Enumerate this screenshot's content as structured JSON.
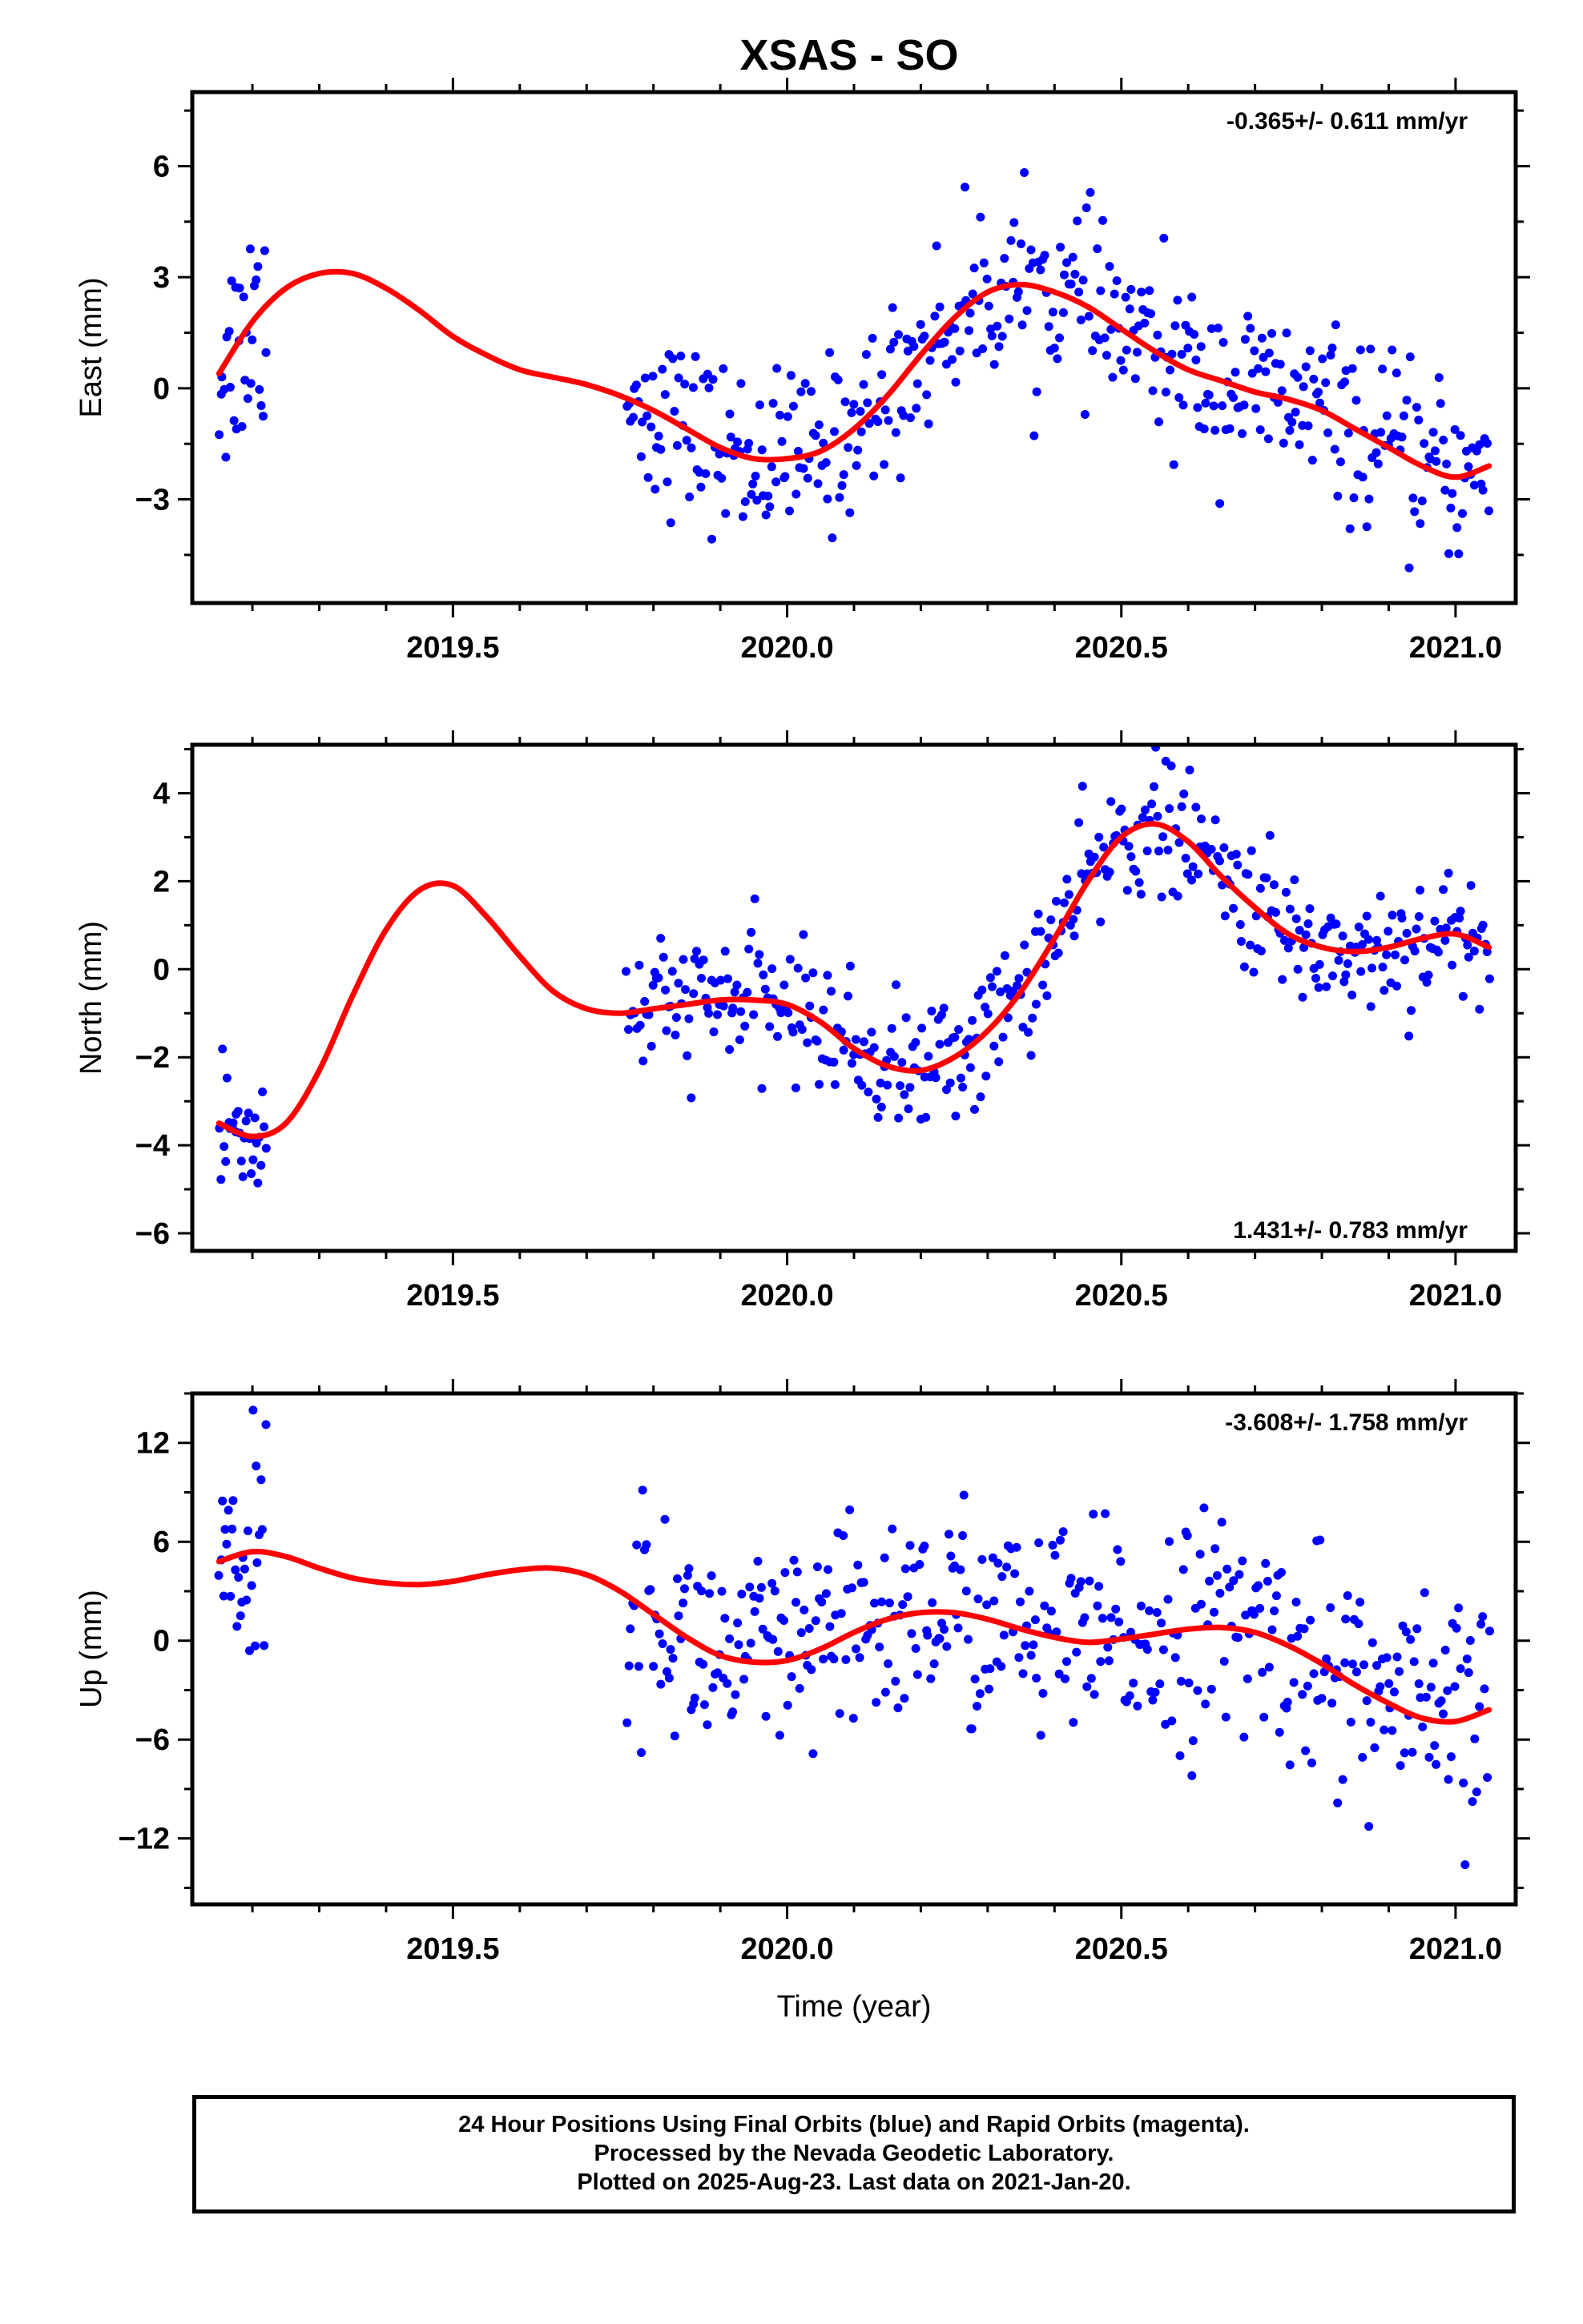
{
  "title": "XSAS - SO",
  "xlabel": "Time (year)",
  "footer": {
    "line1": "24 Hour Positions Using Final Orbits (blue) and Rapid Orbits (magenta).",
    "line2": "Processed by the Nevada Geodetic Laboratory.",
    "line3": "Plotted on 2025-Aug-23. Last data on 2021-Jan-20."
  },
  "colors": {
    "points": "#0000ff",
    "fit": "#ff0000",
    "axes": "#000000"
  },
  "chart_data": [
    {
      "type": "scatter",
      "panel": "east",
      "ylabel": "East (mm)",
      "rate_label": "-0.365+/- 0.611 mm/yr",
      "xlim": [
        2019.11,
        2021.09
      ],
      "ylim": [
        -5.8,
        8.0
      ],
      "x_ticks": [
        2019.5,
        2020.0,
        2020.5,
        2021.0
      ],
      "x_tick_labels": [
        "2019.5",
        "2020.0",
        "2020.5",
        "2021.0"
      ],
      "y_ticks": [
        -3,
        0,
        3,
        6
      ],
      "y_tick_labels": [
        "−3",
        "0",
        "3",
        "6"
      ],
      "fit_x": [
        2019.15,
        2019.2,
        2019.25,
        2019.3,
        2019.35,
        2019.4,
        2019.45,
        2019.5,
        2019.55,
        2019.6,
        2019.65,
        2019.7,
        2019.75,
        2019.8,
        2019.85,
        2019.9,
        2019.95,
        2020.0,
        2020.05,
        2020.1,
        2020.15,
        2020.2,
        2020.25,
        2020.3,
        2020.35,
        2020.4,
        2020.45,
        2020.5,
        2020.55,
        2020.6,
        2020.65,
        2020.7,
        2020.75,
        2020.8,
        2020.85,
        2020.9,
        2020.95,
        2021.0,
        2021.05
      ],
      "fit_y": [
        0.4,
        1.8,
        2.7,
        3.1,
        3.1,
        2.7,
        2.1,
        1.4,
        0.9,
        0.5,
        0.3,
        0.1,
        -0.2,
        -0.6,
        -1.1,
        -1.6,
        -1.9,
        -1.9,
        -1.7,
        -1.1,
        -0.2,
        0.9,
        1.9,
        2.6,
        2.8,
        2.6,
        2.2,
        1.6,
        1.0,
        0.5,
        0.2,
        -0.1,
        -0.3,
        -0.6,
        -1.1,
        -1.6,
        -2.1,
        -2.4,
        -2.1
      ],
      "segments": [
        {
          "x0": 2019.15,
          "x1": 2019.22,
          "n": 30,
          "spread": 1.6
        },
        {
          "x0": 2019.76,
          "x1": 2021.05,
          "n": 430,
          "spread": 1.15
        }
      ]
    },
    {
      "type": "scatter",
      "panel": "north",
      "ylabel": "North (mm)",
      "rate_label": "1.431+/- 0.783 mm/yr",
      "xlim": [
        2019.11,
        2021.09
      ],
      "ylim": [
        -6.4,
        5.1
      ],
      "x_ticks": [
        2019.5,
        2020.0,
        2020.5,
        2021.0
      ],
      "x_tick_labels": [
        "2019.5",
        "2020.0",
        "2020.5",
        "2021.0"
      ],
      "y_ticks": [
        -6,
        -4,
        -2,
        0,
        2,
        4
      ],
      "y_tick_labels": [
        "−6",
        "−4",
        "−2",
        "0",
        "2",
        "4"
      ],
      "fit_x": [
        2019.15,
        2019.2,
        2019.25,
        2019.3,
        2019.35,
        2019.4,
        2019.45,
        2019.5,
        2019.55,
        2019.6,
        2019.65,
        2019.7,
        2019.75,
        2019.8,
        2019.85,
        2019.9,
        2019.95,
        2020.0,
        2020.05,
        2020.1,
        2020.15,
        2020.2,
        2020.25,
        2020.3,
        2020.35,
        2020.4,
        2020.45,
        2020.5,
        2020.55,
        2020.6,
        2020.65,
        2020.7,
        2020.75,
        2020.8,
        2020.85,
        2020.9,
        2020.95,
        2021.0,
        2021.05
      ],
      "fit_y": [
        -3.5,
        -3.8,
        -3.5,
        -2.3,
        -0.6,
        0.9,
        1.8,
        1.9,
        1.2,
        0.3,
        -0.5,
        -0.9,
        -1.0,
        -0.9,
        -0.8,
        -0.7,
        -0.7,
        -0.8,
        -1.2,
        -1.8,
        -2.2,
        -2.3,
        -2.0,
        -1.4,
        -0.5,
        0.7,
        2.0,
        3.0,
        3.3,
        2.9,
        2.1,
        1.4,
        0.8,
        0.5,
        0.4,
        0.5,
        0.7,
        0.8,
        0.5
      ],
      "segments": [
        {
          "x0": 2019.15,
          "x1": 2019.22,
          "n": 30,
          "spread": 0.9
        },
        {
          "x0": 2019.76,
          "x1": 2021.05,
          "n": 430,
          "spread": 0.75
        }
      ]
    },
    {
      "type": "scatter",
      "panel": "up",
      "ylabel": "Up (mm)",
      "rate_label": "-3.608+/- 1.758 mm/yr",
      "xlim": [
        2019.11,
        2021.09
      ],
      "ylim": [
        -16.0,
        15.0
      ],
      "x_ticks": [
        2019.5,
        2020.0,
        2020.5,
        2021.0
      ],
      "x_tick_labels": [
        "2019.5",
        "2020.0",
        "2020.5",
        "2021.0"
      ],
      "y_ticks": [
        -12,
        -6,
        0,
        6,
        12
      ],
      "y_tick_labels": [
        "−12",
        "−6",
        "0",
        "6",
        "12"
      ],
      "fit_x": [
        2019.15,
        2019.2,
        2019.25,
        2019.3,
        2019.35,
        2019.4,
        2019.45,
        2019.5,
        2019.55,
        2019.6,
        2019.65,
        2019.7,
        2019.75,
        2019.8,
        2019.85,
        2019.9,
        2019.95,
        2020.0,
        2020.05,
        2020.1,
        2020.15,
        2020.2,
        2020.25,
        2020.3,
        2020.35,
        2020.4,
        2020.45,
        2020.5,
        2020.55,
        2020.6,
        2020.65,
        2020.7,
        2020.75,
        2020.8,
        2020.85,
        2020.9,
        2020.95,
        2021.0,
        2021.05
      ],
      "fit_y": [
        4.8,
        5.4,
        5.1,
        4.4,
        3.8,
        3.5,
        3.4,
        3.6,
        4.0,
        4.3,
        4.4,
        4.0,
        3.0,
        1.6,
        0.2,
        -0.9,
        -1.3,
        -1.2,
        -0.5,
        0.5,
        1.3,
        1.7,
        1.7,
        1.3,
        0.7,
        0.2,
        -0.1,
        0.1,
        0.4,
        0.7,
        0.8,
        0.5,
        -0.3,
        -1.4,
        -2.7,
        -3.8,
        -4.7,
        -4.9,
        -4.2
      ],
      "segments": [
        {
          "x0": 2019.15,
          "x1": 2019.22,
          "n": 30,
          "spread": 3.6
        },
        {
          "x0": 2019.76,
          "x1": 2021.05,
          "n": 430,
          "spread": 3.4
        }
      ]
    }
  ]
}
